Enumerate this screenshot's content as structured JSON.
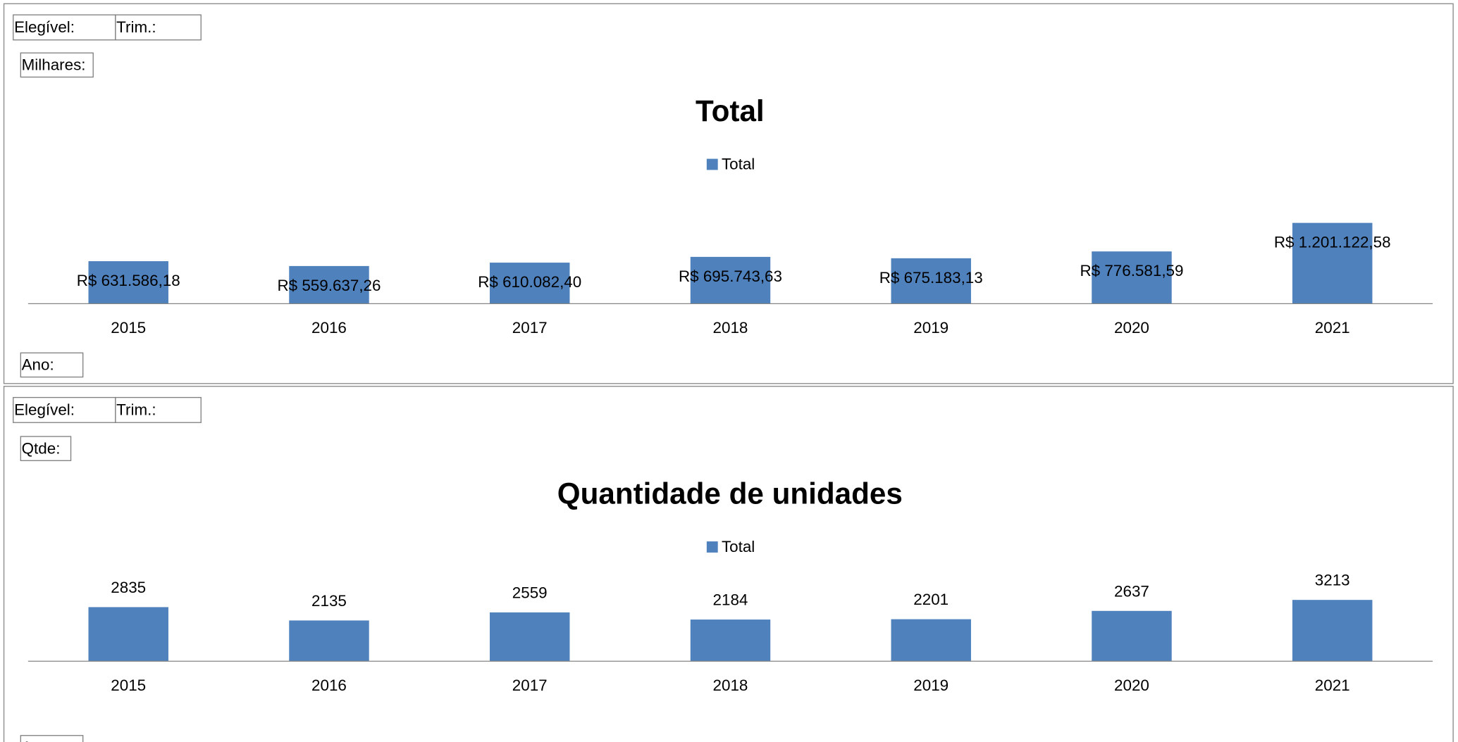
{
  "chart_data": [
    {
      "type": "bar",
      "title": "Total",
      "filter_buttons": [
        "Elegível:",
        "Trim.:"
      ],
      "value_button": "Milhares:",
      "axis_button": "Ano:",
      "categories": [
        "2015",
        "2016",
        "2017",
        "2018",
        "2019",
        "2020",
        "2021"
      ],
      "series": [
        {
          "name": "Total",
          "color": "#4f81bd",
          "values": [
            631586.18,
            559637.26,
            610082.4,
            695743.63,
            675183.13,
            776581.59,
            1201122.58
          ],
          "value_labels": [
            "R$ 631.586,18",
            "R$ 559.637,26",
            "R$ 610.082,40",
            "R$ 695.743,63",
            "R$ 675.183,13",
            "R$ 776.581,59",
            "R$ 1.201.122,58"
          ]
        }
      ],
      "legend": "top"
    },
    {
      "type": "bar",
      "title": "Quantidade de unidades",
      "filter_buttons": [
        "Elegível:",
        "Trim.:"
      ],
      "value_button": "Qtde:",
      "axis_button": "Ano:",
      "categories": [
        "2015",
        "2016",
        "2017",
        "2018",
        "2019",
        "2020",
        "2021"
      ],
      "series": [
        {
          "name": "Total",
          "color": "#4f81bd",
          "values": [
            2835,
            2135,
            2559,
            2184,
            2201,
            2637,
            3213
          ]
        }
      ],
      "legend": "top"
    }
  ]
}
